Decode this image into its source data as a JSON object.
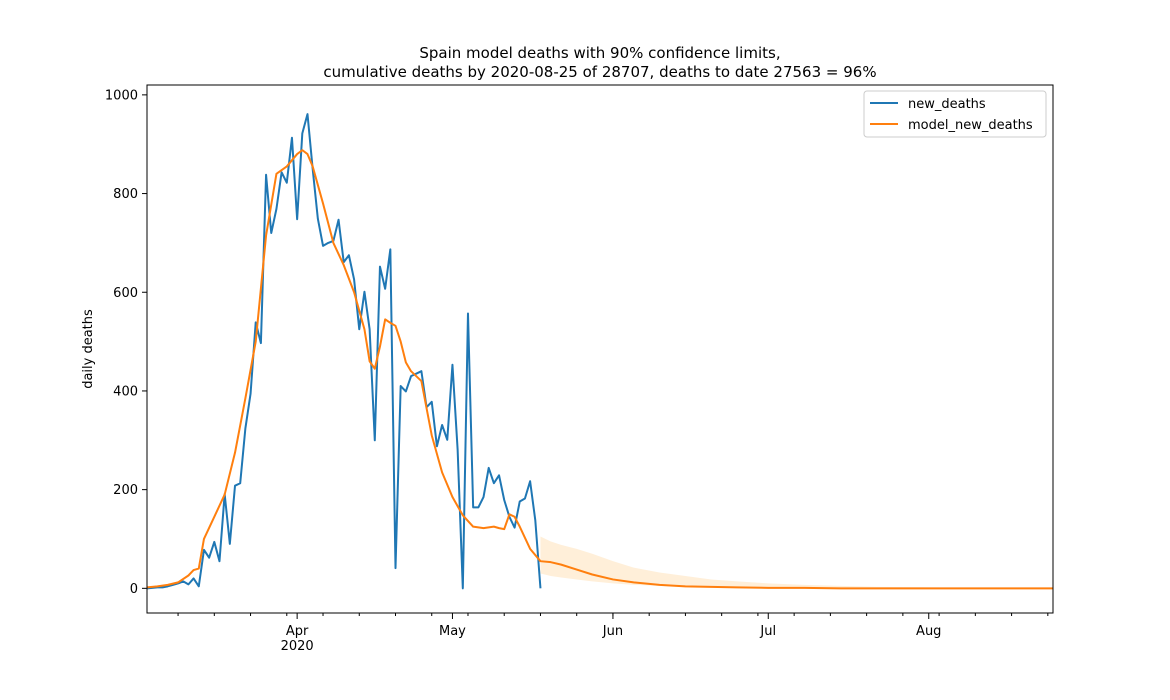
{
  "chart_data": {
    "type": "line",
    "title_line1": "Spain model deaths with 90% confidence limits,",
    "title_line2": "cumulative deaths by 2020-08-25 of 28707, deaths to date 27563 = 96%",
    "xlabel": "",
    "ylabel": "daily deaths",
    "xlim": [
      "2020-03-03",
      "2020-08-25"
    ],
    "ylim": [
      -50,
      1020
    ],
    "yticks": [
      0,
      200,
      400,
      600,
      800,
      1000
    ],
    "ytick_labels": [
      "0",
      "200",
      "400",
      "600",
      "800",
      "1000"
    ],
    "xticks_major": [
      {
        "date": "2020-04-01",
        "label": "Apr",
        "sublabel": "2020"
      },
      {
        "date": "2020-05-01",
        "label": "May",
        "sublabel": ""
      },
      {
        "date": "2020-06-01",
        "label": "Jun",
        "sublabel": ""
      },
      {
        "date": "2020-07-01",
        "label": "Jul",
        "sublabel": ""
      },
      {
        "date": "2020-08-01",
        "label": "Aug",
        "sublabel": ""
      }
    ],
    "grid": false,
    "legend_position": "top-right",
    "colors": {
      "new_deaths": "#1f77b4",
      "model_new_deaths": "#ff7f0e",
      "band": "#ffe9cc"
    },
    "series": [
      {
        "name": "new_deaths",
        "x": [
          "2020-03-03",
          "2020-03-04",
          "2020-03-05",
          "2020-03-06",
          "2020-03-07",
          "2020-03-08",
          "2020-03-09",
          "2020-03-10",
          "2020-03-11",
          "2020-03-12",
          "2020-03-13",
          "2020-03-14",
          "2020-03-15",
          "2020-03-16",
          "2020-03-17",
          "2020-03-18",
          "2020-03-19",
          "2020-03-20",
          "2020-03-21",
          "2020-03-22",
          "2020-03-23",
          "2020-03-24",
          "2020-03-25",
          "2020-03-26",
          "2020-03-27",
          "2020-03-28",
          "2020-03-29",
          "2020-03-30",
          "2020-03-31",
          "2020-04-01",
          "2020-04-02",
          "2020-04-03",
          "2020-04-04",
          "2020-04-05",
          "2020-04-06",
          "2020-04-07",
          "2020-04-08",
          "2020-04-09",
          "2020-04-10",
          "2020-04-11",
          "2020-04-12",
          "2020-04-13",
          "2020-04-14",
          "2020-04-15",
          "2020-04-16",
          "2020-04-17",
          "2020-04-18",
          "2020-04-19",
          "2020-04-20",
          "2020-04-21",
          "2020-04-22",
          "2020-04-23",
          "2020-04-24",
          "2020-04-25",
          "2020-04-26",
          "2020-04-27",
          "2020-04-28",
          "2020-04-29",
          "2020-04-30",
          "2020-05-01",
          "2020-05-02",
          "2020-05-03",
          "2020-05-04",
          "2020-05-05",
          "2020-05-06",
          "2020-05-07",
          "2020-05-08",
          "2020-05-09",
          "2020-05-10",
          "2020-05-11",
          "2020-05-12",
          "2020-05-13",
          "2020-05-14",
          "2020-05-15",
          "2020-05-16",
          "2020-05-17",
          "2020-05-18"
        ],
        "values": [
          0,
          1,
          2,
          2,
          4,
          7,
          10,
          14,
          8,
          20,
          4,
          78,
          62,
          94,
          55,
          191,
          90,
          208,
          213,
          324,
          394,
          539,
          497,
          838,
          720,
          769,
          843,
          822,
          913,
          748,
          922,
          961,
          850,
          749,
          694,
          700,
          704,
          747,
          661,
          675,
          626,
          525,
          601,
          525,
          300,
          652,
          607,
          687,
          41,
          410,
          399,
          430,
          435,
          440,
          367,
          378,
          288,
          331,
          301,
          453,
          281,
          0,
          557,
          164,
          164,
          185,
          244,
          213,
          229,
          179,
          145,
          123,
          176,
          182,
          217,
          138,
          0
        ]
      },
      {
        "name": "model_new_deaths",
        "x": [
          "2020-03-03",
          "2020-03-05",
          "2020-03-07",
          "2020-03-09",
          "2020-03-11",
          "2020-03-12",
          "2020-03-13",
          "2020-03-14",
          "2020-03-16",
          "2020-03-18",
          "2020-03-20",
          "2020-03-22",
          "2020-03-24",
          "2020-03-26",
          "2020-03-28",
          "2020-03-30",
          "2020-04-01",
          "2020-04-02",
          "2020-04-03",
          "2020-04-04",
          "2020-04-06",
          "2020-04-08",
          "2020-04-10",
          "2020-04-12",
          "2020-04-14",
          "2020-04-15",
          "2020-04-16",
          "2020-04-17",
          "2020-04-18",
          "2020-04-19",
          "2020-04-20",
          "2020-04-21",
          "2020-04-22",
          "2020-04-23",
          "2020-04-25",
          "2020-04-27",
          "2020-04-29",
          "2020-05-01",
          "2020-05-03",
          "2020-05-05",
          "2020-05-07",
          "2020-05-09",
          "2020-05-10",
          "2020-05-11",
          "2020-05-12",
          "2020-05-13",
          "2020-05-14",
          "2020-05-16",
          "2020-05-18",
          "2020-05-20",
          "2020-05-22",
          "2020-05-25",
          "2020-05-28",
          "2020-06-01",
          "2020-06-05",
          "2020-06-10",
          "2020-06-15",
          "2020-06-20",
          "2020-06-25",
          "2020-07-01",
          "2020-07-08",
          "2020-07-15",
          "2020-07-22",
          "2020-08-01",
          "2020-08-10",
          "2020-08-25"
        ],
        "values": [
          2,
          4,
          7,
          12,
          26,
          37,
          40,
          100,
          145,
          190,
          275,
          385,
          500,
          715,
          840,
          855,
          880,
          888,
          880,
          855,
          780,
          700,
          655,
          600,
          525,
          460,
          445,
          490,
          545,
          538,
          532,
          500,
          458,
          440,
          420,
          310,
          235,
          185,
          148,
          125,
          122,
          125,
          122,
          120,
          150,
          145,
          125,
          80,
          55,
          53,
          48,
          38,
          28,
          18,
          12,
          7,
          4,
          3,
          2,
          1,
          1,
          0,
          0,
          0,
          0,
          0
        ]
      }
    ],
    "confidence_band_90": {
      "x": [
        "2020-05-18",
        "2020-05-20",
        "2020-05-22",
        "2020-05-25",
        "2020-05-28",
        "2020-06-01",
        "2020-06-05",
        "2020-06-10",
        "2020-06-15",
        "2020-06-20",
        "2020-06-25",
        "2020-07-01",
        "2020-07-08",
        "2020-07-15",
        "2020-07-22",
        "2020-08-01",
        "2020-08-10",
        "2020-08-25"
      ],
      "upper": [
        105,
        95,
        88,
        80,
        70,
        55,
        42,
        32,
        25,
        18,
        14,
        10,
        7,
        5,
        3,
        2,
        1,
        1
      ],
      "lower": [
        30,
        25,
        22,
        18,
        14,
        10,
        7,
        5,
        3,
        2,
        1,
        1,
        0,
        0,
        0,
        0,
        0,
        0
      ]
    }
  }
}
